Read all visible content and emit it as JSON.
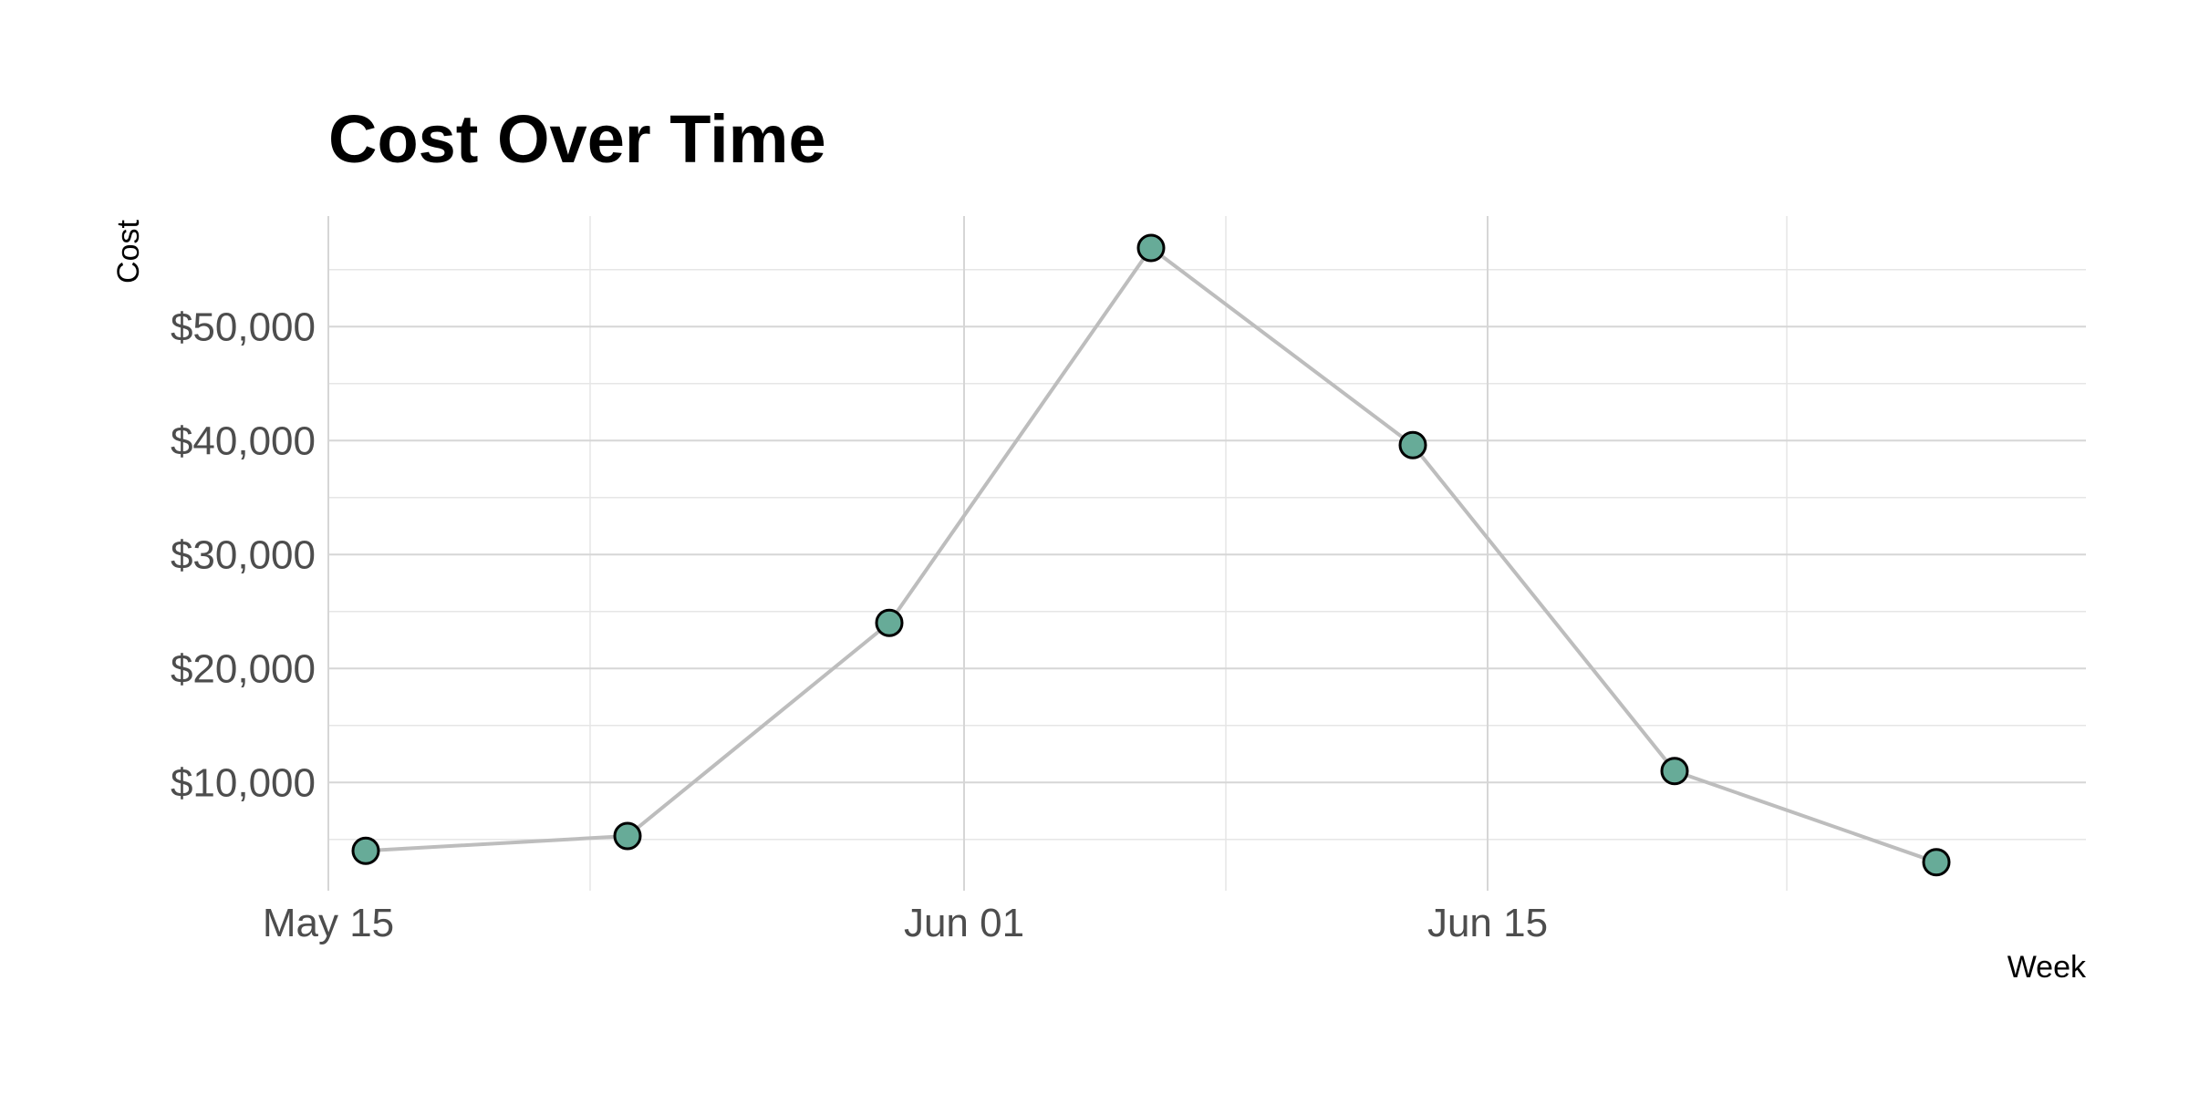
{
  "chart_data": {
    "type": "line",
    "title": "Cost Over Time",
    "xlabel": "Week",
    "ylabel": "Cost",
    "x": [
      "2024-05-16",
      "2024-05-23",
      "2024-05-30",
      "2024-06-06",
      "2024-06-13",
      "2024-06-20",
      "2024-06-27"
    ],
    "values": [
      4000,
      5300,
      24000,
      56900,
      39600,
      11000,
      3000
    ],
    "xlim": [
      "2024-05-15",
      "2024-07-01"
    ],
    "ylim": [
      500,
      59700
    ],
    "x_ticks": [
      {
        "date": "2024-05-15",
        "label": "May 15"
      },
      {
        "date": "2024-06-01",
        "label": "Jun 01"
      },
      {
        "date": "2024-06-15",
        "label": "Jun 15"
      }
    ],
    "x_minor_ticks": [
      "2024-05-22",
      "2024-06-08",
      "2024-06-23"
    ],
    "y_ticks": [
      {
        "value": 10000,
        "label": "$10,000"
      },
      {
        "value": 20000,
        "label": "$20,000"
      },
      {
        "value": 30000,
        "label": "$30,000"
      },
      {
        "value": 40000,
        "label": "$40,000"
      },
      {
        "value": 50000,
        "label": "$50,000"
      }
    ],
    "y_minor_ticks": [
      5000,
      15000,
      25000,
      35000,
      45000,
      55000
    ],
    "grid": true,
    "legend": "none",
    "colors": {
      "point_fill": "#67ab98",
      "point_stroke": "#000000",
      "line": "#bdbdbd",
      "grid": "#d6d6d6",
      "tick_text": "#4d4d4d"
    }
  }
}
